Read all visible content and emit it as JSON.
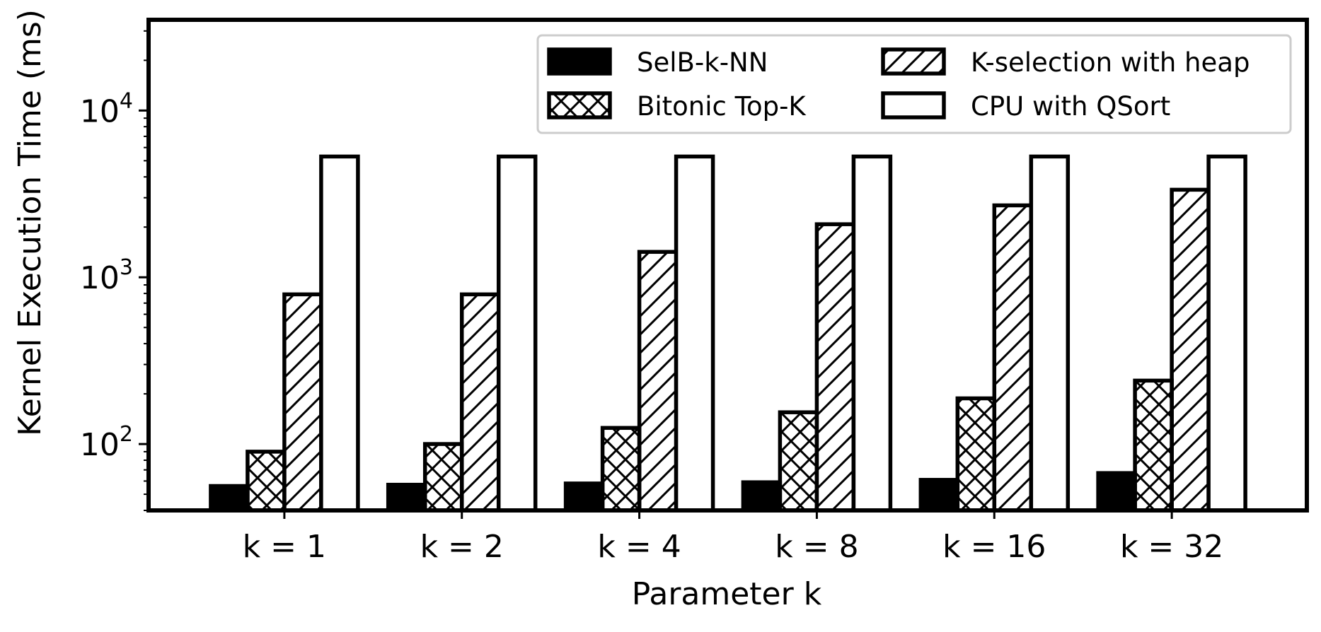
{
  "chart_data": {
    "type": "bar",
    "title": "",
    "xlabel": "Parameter k",
    "ylabel": "Kernel Execution Time (ms)",
    "yscale": "log",
    "ylim": [
      40,
      35000
    ],
    "y_ticks": [
      {
        "base": "10",
        "exp": "2"
      },
      {
        "base": "10",
        "exp": "3"
      },
      {
        "base": "10",
        "exp": "4"
      }
    ],
    "categories": [
      "k = 1",
      "k = 2",
      "k = 4",
      "k = 8",
      "k = 16",
      "k = 32"
    ],
    "series": [
      {
        "name": "SelB-k-NN",
        "values": [
          56,
          57,
          58,
          59,
          61,
          67
        ]
      },
      {
        "name": "Bitonic Top-K",
        "values": [
          90,
          100,
          125,
          155,
          188,
          240
        ]
      },
      {
        "name": "K-selection with heap",
        "values": [
          790,
          790,
          1420,
          2080,
          2700,
          3350
        ]
      },
      {
        "name": "CPU with QSort",
        "values": [
          5300,
          5300,
          5300,
          5300,
          5300,
          5300
        ]
      }
    ],
    "grid": false,
    "legend_position": "top-right"
  }
}
